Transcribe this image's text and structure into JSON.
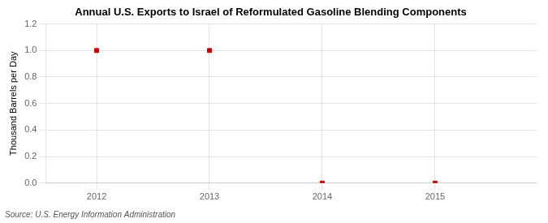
{
  "chart_data": {
    "type": "scatter",
    "title": "Annual U.S. Exports to Israel of Reformulated Gasoline Blending Components",
    "ylabel": "Thousand Barrels per Day",
    "annotation": "Source: U.S. Energy Information Administration",
    "x": [
      2012,
      2013,
      2014,
      2015
    ],
    "values": [
      1.0,
      1.0,
      0.0,
      0.0
    ],
    "color": "#cc0000",
    "marker": "square",
    "xlim": [
      2011.55,
      2015.9
    ],
    "ylim": [
      0.0,
      1.2
    ],
    "xticks": [
      2012,
      2013,
      2014,
      2015
    ],
    "yticks": [
      {
        "value": 0.0,
        "label": "0.0"
      },
      0.2,
      0.4,
      0.6,
      0.8,
      {
        "value": 1.0,
        "label": "1.0"
      },
      1.2
    ],
    "grid": true
  }
}
